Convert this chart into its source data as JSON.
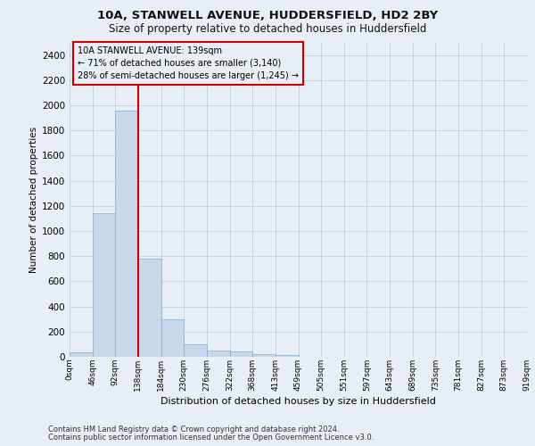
{
  "title_line1": "10A, STANWELL AVENUE, HUDDERSFIELD, HD2 2BY",
  "title_line2": "Size of property relative to detached houses in Huddersfield",
  "xlabel": "Distribution of detached houses by size in Huddersfield",
  "ylabel": "Number of detached properties",
  "footer_line1": "Contains HM Land Registry data © Crown copyright and database right 2024.",
  "footer_line2": "Contains public sector information licensed under the Open Government Licence v3.0.",
  "bin_labels": [
    "0sqm",
    "46sqm",
    "92sqm",
    "138sqm",
    "184sqm",
    "230sqm",
    "276sqm",
    "322sqm",
    "368sqm",
    "413sqm",
    "459sqm",
    "505sqm",
    "551sqm",
    "597sqm",
    "643sqm",
    "689sqm",
    "735sqm",
    "781sqm",
    "827sqm",
    "873sqm",
    "919sqm"
  ],
  "bar_values": [
    35,
    1140,
    1960,
    780,
    300,
    100,
    47,
    40,
    22,
    15,
    0,
    0,
    0,
    0,
    0,
    0,
    0,
    0,
    0,
    0
  ],
  "bar_color": "#c8d8ea",
  "bar_edge_color": "#8aaac8",
  "grid_color": "#c8d4de",
  "vline_x": 3,
  "vline_color": "#cc0000",
  "annotation_text_line1": "10A STANWELL AVENUE: 139sqm",
  "annotation_text_line2": "← 71% of detached houses are smaller (3,140)",
  "annotation_text_line3": "28% of semi-detached houses are larger (1,245) →",
  "ylim": [
    0,
    2500
  ],
  "yticks": [
    0,
    200,
    400,
    600,
    800,
    1000,
    1200,
    1400,
    1600,
    1800,
    2000,
    2200,
    2400
  ],
  "fig_bg_color": "#e8eef5",
  "plot_bg_color": "#e8eef5",
  "title1_fontsize": 9.5,
  "title2_fontsize": 8.5,
  "footer_fontsize": 6.0,
  "ylabel_fontsize": 7.5,
  "xlabel_fontsize": 8.0,
  "ytick_fontsize": 7.5,
  "xtick_fontsize": 6.5,
  "ann_fontsize": 7.0
}
